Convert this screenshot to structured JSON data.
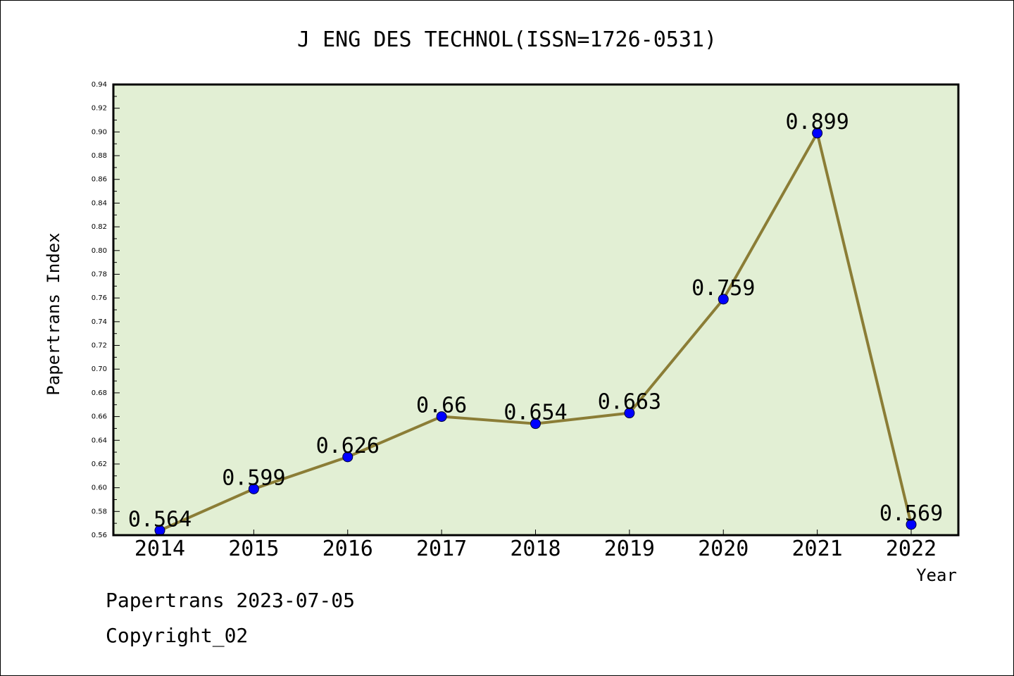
{
  "colors": {
    "plot_background": "#e2efd4",
    "line": "#8b7d36",
    "marker": "#0000ff",
    "axis": "#000000"
  },
  "chart_data": {
    "type": "line",
    "title": "J ENG DES TECHNOL(ISSN=1726-0531)",
    "xlabel": "Year",
    "ylabel": "Papertrans Index",
    "categories": [
      "2014",
      "2015",
      "2016",
      "2017",
      "2018",
      "2019",
      "2020",
      "2021",
      "2022"
    ],
    "series": [
      {
        "values": [
          0.564,
          0.599,
          0.626,
          0.66,
          0.654,
          0.663,
          0.759,
          0.899,
          0.569
        ]
      }
    ],
    "data_labels": [
      "0.564",
      "0.599",
      "0.626",
      "0.66",
      "0.654",
      "0.663",
      "0.759",
      "0.899",
      "0.569"
    ],
    "ylim": [
      0.56,
      0.94
    ],
    "yticks": [
      "0.56",
      "0.58",
      "0.60",
      "0.62",
      "0.64",
      "0.66",
      "0.68",
      "0.70",
      "0.72",
      "0.74",
      "0.76",
      "0.78",
      "0.80",
      "0.82",
      "0.84",
      "0.86",
      "0.88",
      "0.90",
      "0.92",
      "0.94"
    ],
    "grid": false,
    "legend": "none"
  },
  "footer": {
    "line1": "Papertrans 2023-07-05",
    "line2": "Copyright_02"
  }
}
